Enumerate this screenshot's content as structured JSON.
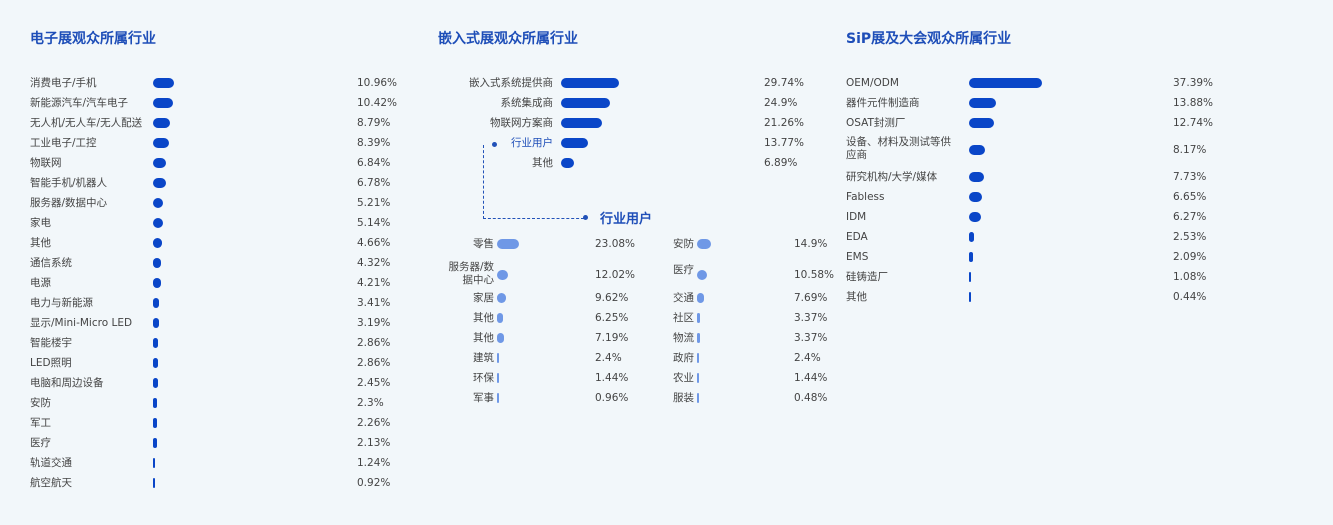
{
  "chart_data": [
    {
      "type": "bar",
      "title": "电子展观众所属行业",
      "categories": [
        "消费电子/手机",
        "新能源汽车/汽车电子",
        "无人机/无人车/无人配送",
        "工业电子/工控",
        "物联网",
        "智能手机/机器人",
        "服务器/数据中心",
        "家电",
        "其他",
        "通信系统",
        "电源",
        "电力与新能源",
        "显示/Mini-Micro LED",
        "智能楼宇",
        "LED照明",
        "电脑和周边设备",
        "安防",
        "军工",
        "医疗",
        "轨道交通",
        "航空航天"
      ],
      "values": [
        10.96,
        10.42,
        8.79,
        8.39,
        6.84,
        6.78,
        5.21,
        5.14,
        4.66,
        4.32,
        4.21,
        3.41,
        3.19,
        2.86,
        2.86,
        2.45,
        2.3,
        2.26,
        2.13,
        1.24,
        0.92
      ],
      "labels": [
        "10.96%",
        "10.42%",
        "8.79%",
        "8.39%",
        "6.84%",
        "6.78%",
        "5.21%",
        "5.14%",
        "4.66%",
        "4.32%",
        "4.21%",
        "3.41%",
        "3.19%",
        "2.86%",
        "2.86%",
        "2.45%",
        "2.3%",
        "2.26%",
        "2.13%",
        "1.24%",
        "0.92%"
      ],
      "color": "#0a46c8"
    },
    {
      "type": "bar",
      "title": "嵌入式展观众所属行业",
      "categories": [
        "嵌入式系统提供商",
        "系统集成商",
        "物联网方案商",
        "行业用户",
        "其他"
      ],
      "values": [
        29.74,
        24.9,
        21.26,
        13.77,
        6.89
      ],
      "labels": [
        "29.74%",
        "24.9%",
        "21.26%",
        "13.77%",
        "6.89%"
      ],
      "color": "#0a46c8",
      "highlighted": "行业用户"
    },
    {
      "type": "bar",
      "title": "行业用户",
      "categories": [
        "零售",
        "服务器/数据中心",
        "家居",
        "其他",
        "其他",
        "建筑",
        "环保",
        "军事",
        "安防",
        "医疗",
        "交通",
        "社区",
        "物流",
        "政府",
        "农业",
        "服装"
      ],
      "values": [
        23.08,
        12.02,
        9.62,
        6.25,
        7.19,
        2.4,
        1.44,
        0.96,
        14.9,
        10.58,
        7.69,
        3.37,
        3.37,
        2.4,
        1.44,
        0.48
      ],
      "labels": [
        "23.08%",
        "12.02%",
        "9.62%",
        "6.25%",
        "7.19%",
        "2.4%",
        "1.44%",
        "0.96%",
        "14.9%",
        "10.58%",
        "7.69%",
        "3.37%",
        "3.37%",
        "2.4%",
        "1.44%",
        "0.48%"
      ],
      "color": "#6f98e6"
    },
    {
      "type": "bar",
      "title": "SiP展及大会观众所属行业",
      "categories": [
        "OEM/ODM",
        "器件元件制造商",
        "OSAT封测厂",
        "设备、材料及测试等供应商",
        "研究机构/大学/媒体",
        "Fabless",
        "IDM",
        "EDA",
        "EMS",
        "硅铸造厂",
        "其他"
      ],
      "values": [
        37.39,
        13.88,
        12.74,
        8.17,
        7.73,
        6.65,
        6.27,
        2.53,
        2.09,
        1.08,
        0.44
      ],
      "labels": [
        "37.39%",
        "13.88%",
        "12.74%",
        "8.17%",
        "7.73%",
        "6.65%",
        "6.27%",
        "2.53%",
        "2.09%",
        "1.08%",
        "0.44%"
      ],
      "color": "#0a46c8"
    }
  ]
}
